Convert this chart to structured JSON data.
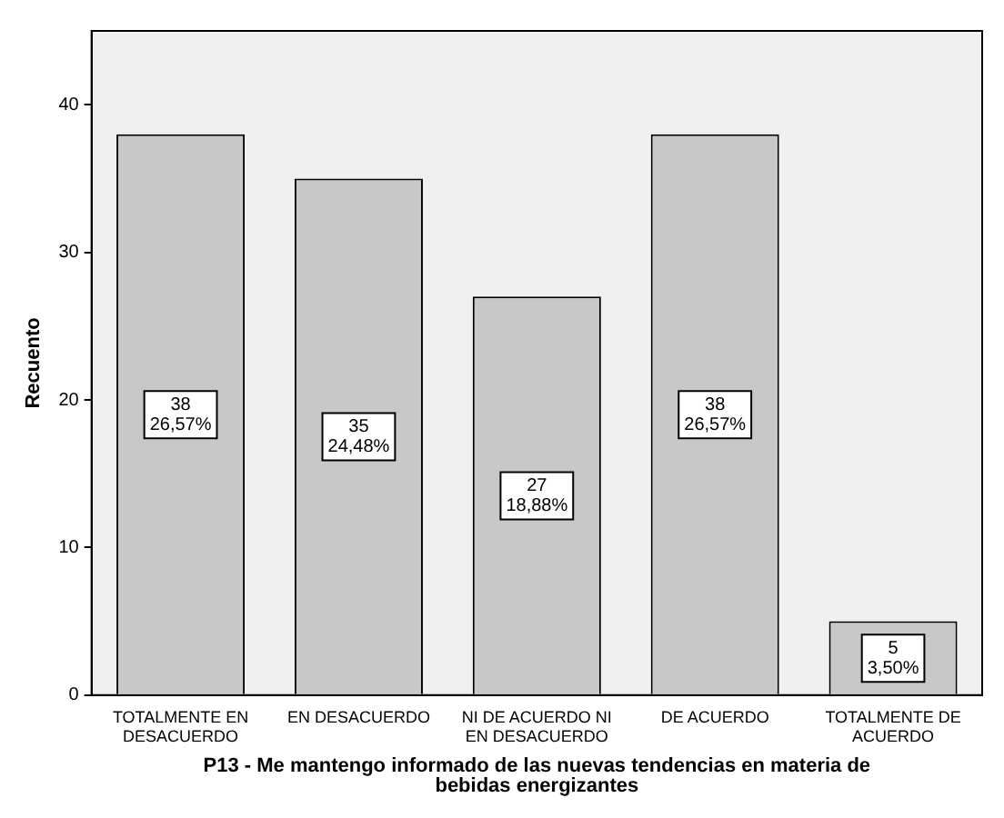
{
  "chart_data": {
    "type": "bar",
    "xlabel": "P13 - Me mantengo informado de las nuevas tendencias en materia de bebidas energizantes",
    "ylabel": "Recuento",
    "categories": [
      "TOTALMENTE EN DESACUERDO",
      "EN DESACUERDO",
      "NI DE ACUERDO NI EN DESACUERDO",
      "DE ACUERDO",
      "TOTALMENTE DE ACUERDO"
    ],
    "values": [
      38,
      35,
      27,
      38,
      5
    ],
    "value_labels": [
      "38\n26,57%",
      "35\n24,48%",
      "27\n18,88%",
      "38\n26,57%",
      "5\n3,50%"
    ],
    "color": "#c8c8c8",
    "ylim": [
      0,
      45
    ],
    "yticks": [
      0,
      10,
      20,
      30,
      40
    ],
    "grid": false,
    "legend": false
  }
}
